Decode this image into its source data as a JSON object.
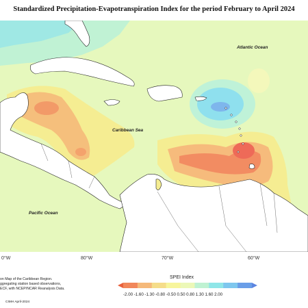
{
  "title": "Standardized Precipitation-Evapotranspiration Index for the period February to April 2024",
  "labels": {
    "atlantic": "Atlantic Ocean",
    "caribbean": "Caribbean Sea",
    "pacific": "Pacific Ocean"
  },
  "longitudes": [
    "0°W",
    "80°W",
    "70°W",
    "60°W"
  ],
  "credits": {
    "line1": "on Map of the Caribbean Region.",
    "line2": "ggregating station based observations,",
    "line3": "ECF, with NCEP/NCAR Reanalysis Data."
  },
  "footer": "CIMH April-2024",
  "legend": {
    "title": "SPEI Index",
    "ticks": [
      "-2.00",
      "-1.60",
      "-1.30",
      "-0.80",
      "-0.50",
      "0.50",
      "0.80",
      "1.30",
      "1.60",
      "2.00"
    ],
    "colors": [
      "#e8603c",
      "#f1875a",
      "#f5b97a",
      "#f5dd8a",
      "#f7f59c",
      "#ecf8b8",
      "#bff2d2",
      "#8fe6e8",
      "#7ec7ee",
      "#6a9ee8",
      "#5c85e0"
    ]
  }
}
